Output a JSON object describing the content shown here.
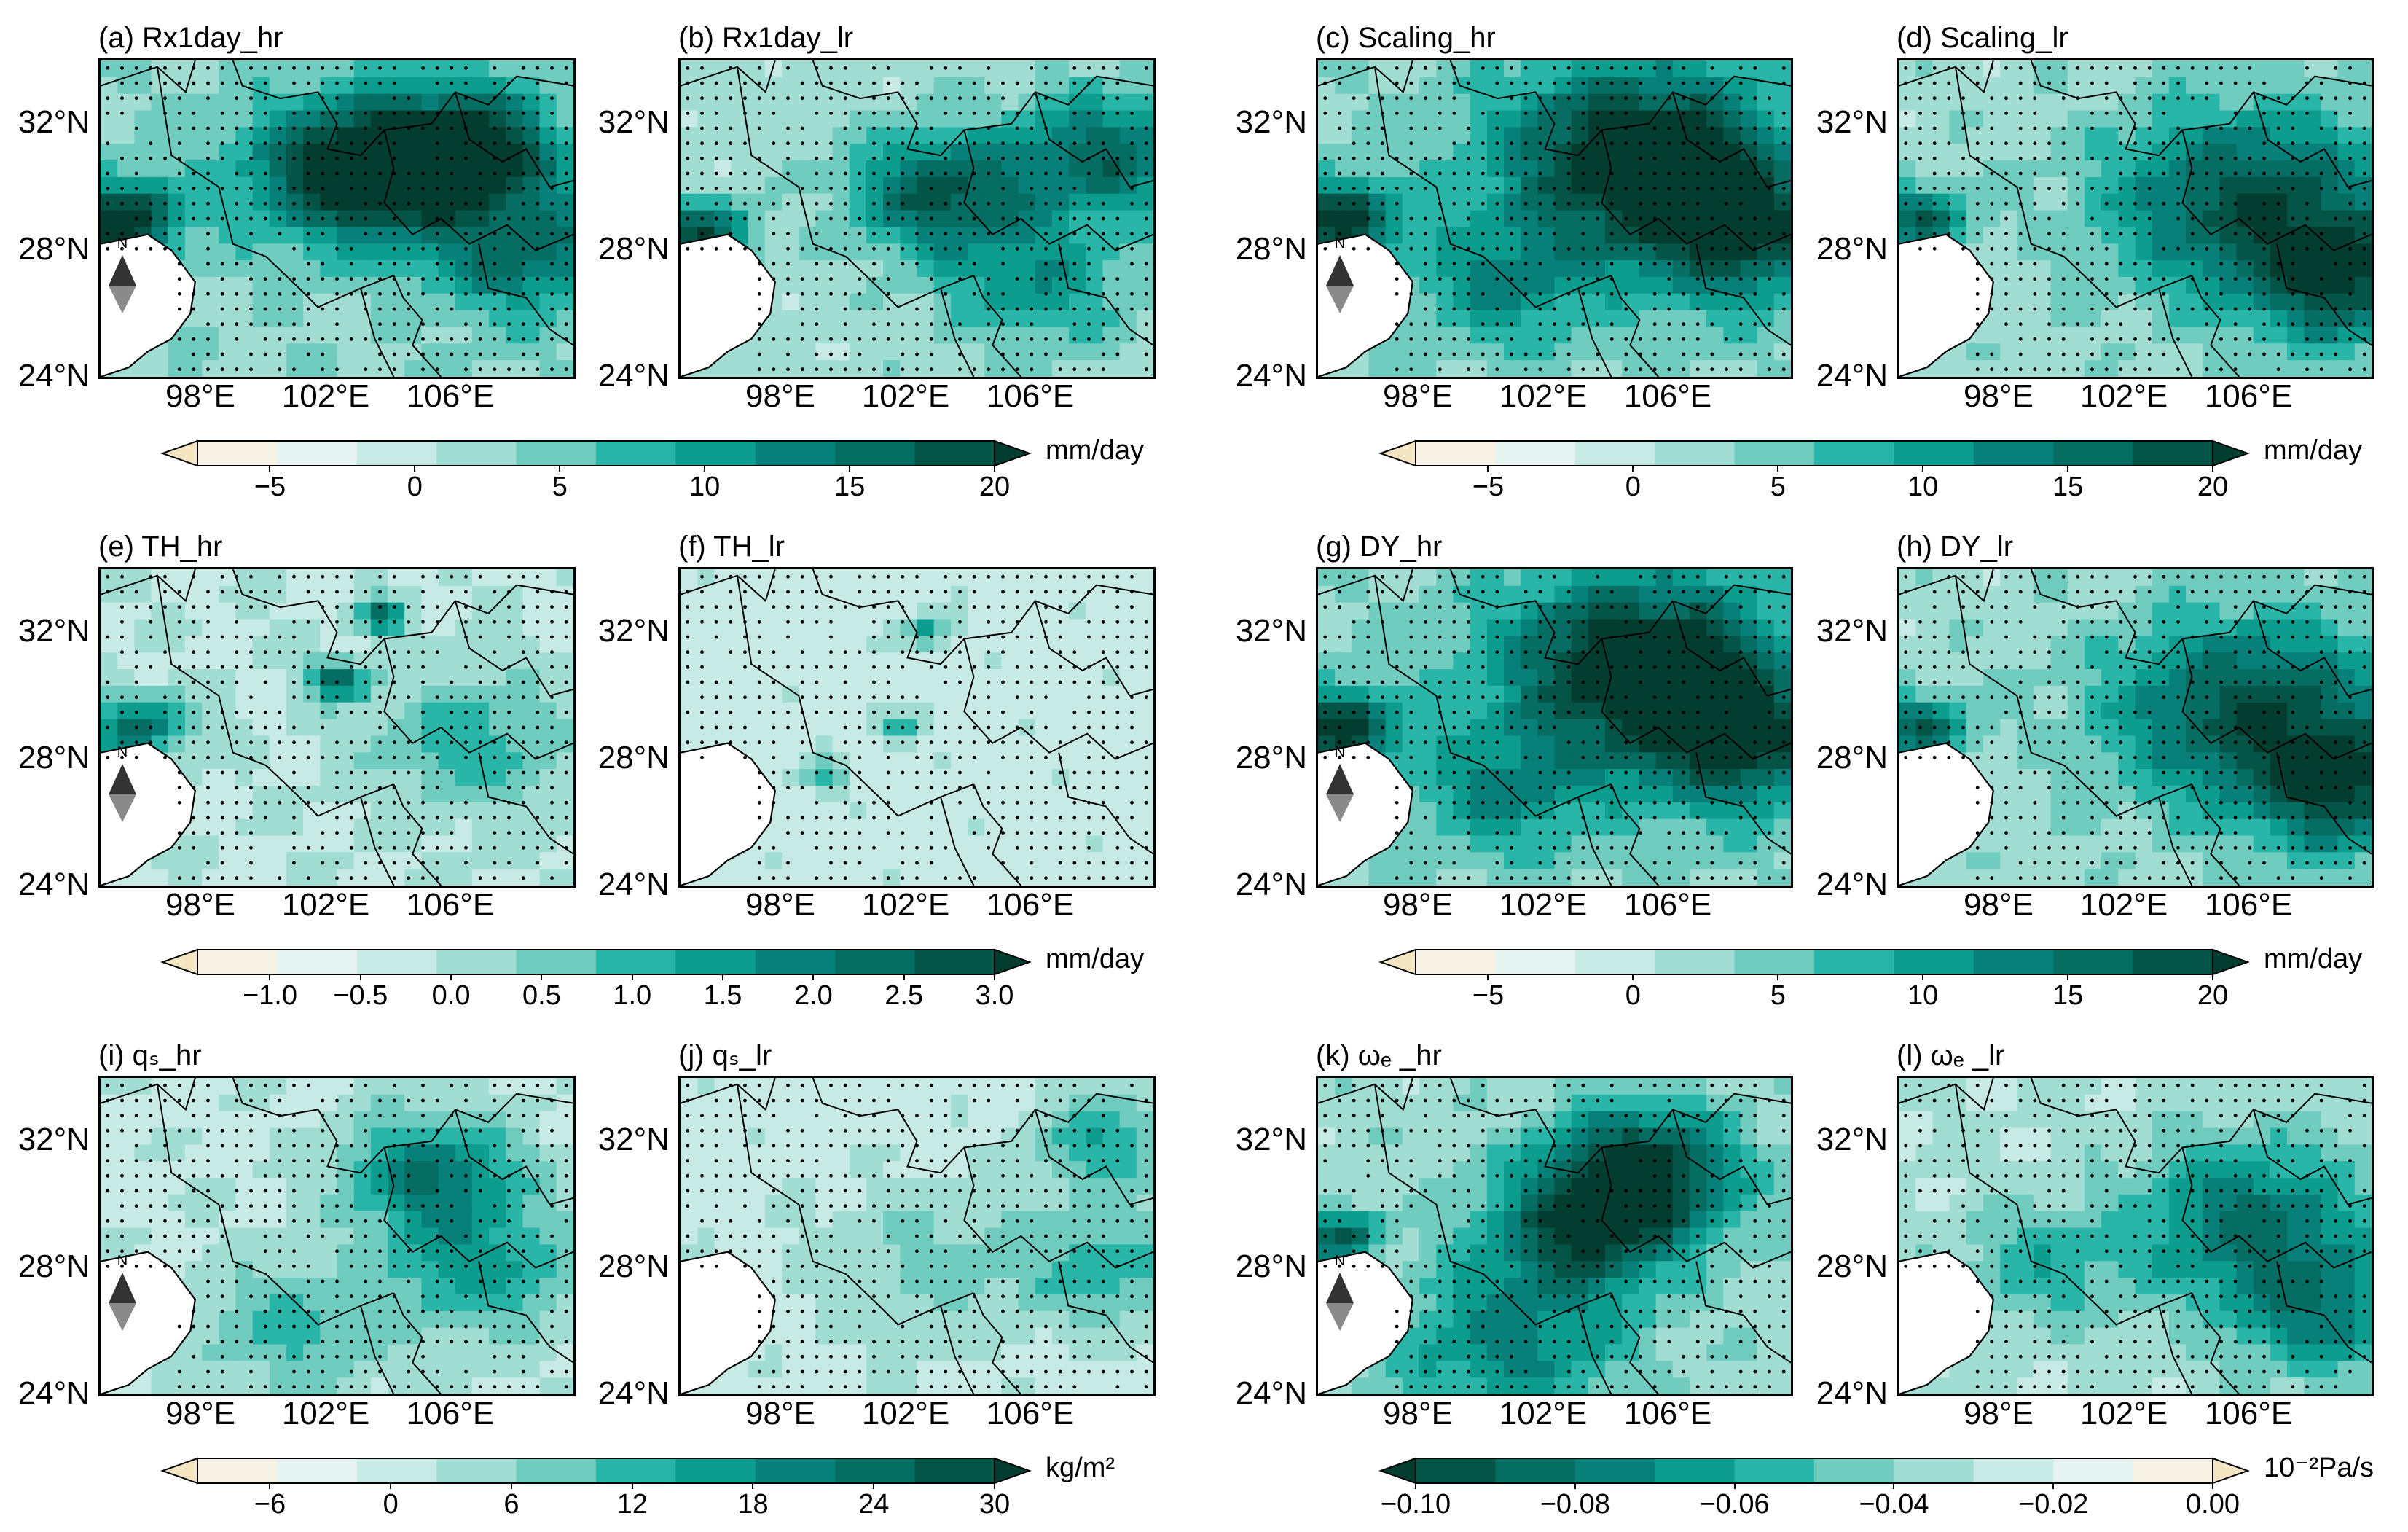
{
  "panels": [
    {
      "title": "(a) Rx1day_hr",
      "scheme": "rx",
      "intensity": 0.95
    },
    {
      "title": "(b) Rx1day_lr",
      "scheme": "rxl",
      "intensity": 0.75
    },
    {
      "title": "(c) Scaling_hr",
      "scheme": "sc",
      "intensity": 0.95
    },
    {
      "title": "(d) Scaling_lr",
      "scheme": "scl",
      "intensity": 0.8
    },
    {
      "title": "(e) TH_hr",
      "scheme": "th",
      "intensity": 0.5
    },
    {
      "title": "(f) TH_lr",
      "scheme": "thl",
      "intensity": 0.3
    },
    {
      "title": "(g) DY_hr",
      "scheme": "sc",
      "intensity": 0.95
    },
    {
      "title": "(h) DY_lr",
      "scheme": "scl",
      "intensity": 0.8
    },
    {
      "title": "(i) qₛ_hr",
      "scheme": "q",
      "intensity": 0.45
    },
    {
      "title": "(j) qₛ_lr",
      "scheme": "ql",
      "intensity": 0.3
    },
    {
      "title": "(k) ωₑ _hr",
      "scheme": "w",
      "intensity": 0.8
    },
    {
      "title": "(l) ωₑ _lr",
      "scheme": "wl",
      "intensity": 0.6
    }
  ],
  "lat_labels": [
    "32°N",
    "28°N",
    "24°N"
  ],
  "lon_labels": [
    "98°E",
    "102°E",
    "106°E"
  ],
  "north_label": "N",
  "colorbars": [
    {
      "unit": "mm/day",
      "labels": [
        "−5",
        "0",
        "5",
        "10",
        "15",
        "20"
      ],
      "reversed": false
    },
    {
      "unit": "mm/day",
      "labels": [
        "−5",
        "0",
        "5",
        "10",
        "15",
        "20"
      ],
      "reversed": false
    },
    {
      "unit": "mm/day",
      "labels": [
        "−1.0",
        "−0.5",
        "0.0",
        "0.5",
        "1.0",
        "1.5",
        "2.0",
        "2.5",
        "3.0"
      ],
      "reversed": false
    },
    {
      "unit": "mm/day",
      "labels": [
        "−5",
        "0",
        "5",
        "10",
        "15",
        "20"
      ],
      "reversed": false
    },
    {
      "unit": "kg/m²",
      "labels": [
        "−6",
        "0",
        "6",
        "12",
        "18",
        "24",
        "30"
      ],
      "reversed": false
    },
    {
      "unit": "10⁻²Pa/s",
      "labels": [
        "−0.10",
        "−0.08",
        "−0.06",
        "−0.04",
        "−0.02",
        "0.00"
      ],
      "reversed": true
    }
  ],
  "palette": [
    "#f5e6c3",
    "#f7f2e6",
    "#e6f4f1",
    "#c7ebe4",
    "#a2ddd3",
    "#6fccbf",
    "#29b6a8",
    "#0d9d8f",
    "#07807a",
    "#056d62",
    "#045547",
    "#033d30"
  ]
}
